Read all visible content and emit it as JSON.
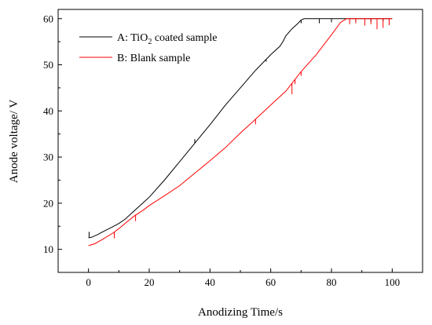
{
  "chart_data": {
    "type": "line",
    "title": "",
    "xlabel": "Anodizing Time/s",
    "ylabel": "Anode voltage/ V",
    "xlim": [
      -10,
      110
    ],
    "ylim": [
      5,
      62
    ],
    "xticks": [
      0,
      20,
      40,
      60,
      80,
      100
    ],
    "yticks": [
      10,
      20,
      30,
      40,
      50,
      60
    ],
    "grid": false,
    "legend": "top-left",
    "series": [
      {
        "name_prefix": "A: TiO",
        "name_sub": "2",
        "name_suffix": " coated sample",
        "color": "#000000",
        "points": [
          [
            0,
            12.5
          ],
          [
            1,
            12.6
          ],
          [
            3,
            13.2
          ],
          [
            5,
            13.9
          ],
          [
            8,
            14.9
          ],
          [
            10,
            15.6
          ],
          [
            12,
            16.5
          ],
          [
            15,
            18.3
          ],
          [
            20,
            21.3
          ],
          [
            25,
            25.0
          ],
          [
            30,
            29.0
          ],
          [
            35,
            33.0
          ],
          [
            40,
            37.0
          ],
          [
            45,
            41.2
          ],
          [
            50,
            45.0
          ],
          [
            55,
            48.8
          ],
          [
            60,
            52.2
          ],
          [
            63,
            54.0
          ],
          [
            64,
            55.0
          ],
          [
            65,
            56.3
          ],
          [
            67,
            57.8
          ],
          [
            69,
            59.0
          ],
          [
            70,
            59.7
          ],
          [
            71,
            60.0
          ],
          [
            75,
            60.0
          ],
          [
            80,
            60.0
          ],
          [
            85,
            60.0
          ],
          [
            90,
            60.0
          ],
          [
            95,
            60.0
          ],
          [
            100,
            60.0
          ]
        ],
        "spikes": [
          [
            0.2,
            13.8
          ],
          [
            35,
            33.9
          ],
          [
            58.5,
            50.7
          ],
          [
            70,
            59.0
          ],
          [
            76,
            59.0
          ],
          [
            80,
            59.2
          ],
          [
            88,
            59.3
          ],
          [
            93,
            59.3
          ],
          [
            97,
            59.4
          ],
          [
            99,
            59.5
          ]
        ]
      },
      {
        "name": "B: Blank sample",
        "color": "#ff0000",
        "points": [
          [
            0,
            10.8
          ],
          [
            2,
            11.2
          ],
          [
            5,
            12.3
          ],
          [
            8,
            13.5
          ],
          [
            10,
            14.5
          ],
          [
            12,
            15.6
          ],
          [
            15,
            17.2
          ],
          [
            18,
            18.5
          ],
          [
            20,
            19.5
          ],
          [
            25,
            21.6
          ],
          [
            30,
            23.8
          ],
          [
            35,
            26.5
          ],
          [
            40,
            29.2
          ],
          [
            45,
            32.0
          ],
          [
            50,
            35.2
          ],
          [
            55,
            38.2
          ],
          [
            60,
            41.3
          ],
          [
            65,
            44.3
          ],
          [
            70,
            48.5
          ],
          [
            75,
            52.2
          ],
          [
            80,
            56.5
          ],
          [
            83,
            59.2
          ],
          [
            85,
            60.0
          ],
          [
            87,
            60.0
          ],
          [
            90,
            60.0
          ],
          [
            95,
            60.0
          ],
          [
            100,
            60.0
          ]
        ],
        "spikes": [
          [
            8.5,
            12.4
          ],
          [
            15.5,
            16.1
          ],
          [
            55,
            37.1
          ],
          [
            67,
            43.6
          ],
          [
            68,
            45.8
          ],
          [
            70,
            47.6
          ],
          [
            86,
            58.8
          ],
          [
            88,
            59.0
          ],
          [
            91,
            58.5
          ],
          [
            93,
            58.8
          ],
          [
            95,
            57.7
          ],
          [
            97,
            58.0
          ],
          [
            99,
            58.6
          ]
        ]
      }
    ]
  }
}
